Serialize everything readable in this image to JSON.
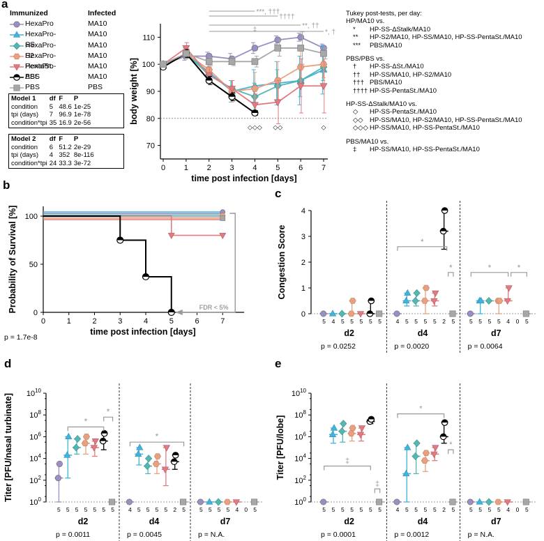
{
  "panels": {
    "a": "a",
    "b": "b",
    "c": "c",
    "d": "d",
    "e": "e"
  },
  "legend": {
    "header_group": "Immunized",
    "header_infect": "Infected",
    "entries": [
      {
        "name": "HexaPro",
        "infect": "MA10",
        "color": "#9b8ec4",
        "marker": "circle"
      },
      {
        "name": "HexaPro-SS",
        "infect": "MA10",
        "color": "#3fb4dc",
        "marker": "triangle-up"
      },
      {
        "name": "HexaPro-S2",
        "infect": "MA10",
        "color": "#54b7b3",
        "marker": "diamond"
      },
      {
        "name": "HexaPro-PentaSt.",
        "infect": "MA10",
        "color": "#e8a07f",
        "marker": "hexagon"
      },
      {
        "name": "HexaPro-ΔSt.",
        "infect": "MA10",
        "color": "#df7b82",
        "marker": "triangle-down"
      },
      {
        "name": "PBS",
        "infect": "MA10",
        "color": "#000000",
        "marker": "half-circle"
      },
      {
        "name": "PBS",
        "infect": "PBS",
        "color": "#a7a7a7",
        "marker": "square"
      }
    ]
  },
  "models": [
    {
      "title": "Model 1",
      "cols": [
        "df",
        "F",
        "P"
      ],
      "rows": [
        [
          "condition",
          "5",
          "48.6",
          "1e-25"
        ],
        [
          "tpi (days)",
          "7",
          "96.9",
          "1e-78"
        ],
        [
          "condition*tpi",
          "35",
          "16.9",
          "2e-56"
        ]
      ]
    },
    {
      "title": "Model 2",
      "cols": [
        "df",
        "F",
        "P"
      ],
      "rows": [
        [
          "condition",
          "6",
          "51.2",
          "2e-29"
        ],
        [
          "tpi (days)",
          "4",
          "352",
          "8e-116"
        ],
        [
          "condition*tpi",
          "24",
          "33.3",
          "3e-72"
        ]
      ]
    }
  ],
  "tukey": {
    "title": "Tukey post-tests, per day:",
    "groups": [
      {
        "head": "HP/MA10 vs.",
        "rows": [
          [
            "*",
            "HP-SS-ΔStalk/MA10"
          ],
          [
            "**",
            "HP-S2/MA10, HP-SS/MA10, HP-SS-PentaSt./MA10"
          ],
          [
            "***",
            "PBS/MA10"
          ]
        ]
      },
      {
        "head": "PBS/PBS vs.",
        "rows": [
          [
            "†",
            "HP-SS-ΔSt./MA10"
          ],
          [
            "††",
            "HP-SS/MA10, HP-S2/MA10"
          ],
          [
            "†††",
            "PBS/MA10"
          ],
          [
            "††††",
            "HP-SS-PentaSt./MA10"
          ]
        ]
      },
      {
        "head": "HP-SS-ΔStalk/MA10 vs.",
        "rows": [
          [
            "◇",
            "HP-SS-PentaSt./MA10"
          ],
          [
            "◇◇",
            "HP-SS/MA10, HP-S2/MA10, HP-SS-PentaSt./MA10"
          ],
          [
            "◇◇◇",
            "HP-SS/MA10, HP-SS-PentaSt./MA10"
          ]
        ]
      },
      {
        "head": "PBS/MA10 vs.",
        "rows": [
          [
            "‡",
            "HP-SS/MA10, HP-SS-PentaSt./MA10"
          ]
        ]
      }
    ]
  },
  "chart_data": [
    {
      "panel": "a",
      "type": "line",
      "xlabel": "time post infection [days]",
      "ylabel": "body weight [%]",
      "x": [
        0,
        1,
        2,
        3,
        4,
        5,
        6,
        7
      ],
      "ylim": [
        65,
        115
      ],
      "yticks": [
        70,
        80,
        90,
        100,
        110
      ],
      "reference_line": 80,
      "series": [
        {
          "name": "HexaPro",
          "values": [
            100,
            103,
            103,
            102,
            106,
            109,
            110,
            106
          ],
          "err": [
            0.5,
            1.5,
            1.5,
            2,
            2,
            1.5,
            1.5,
            1.5
          ]
        },
        {
          "name": "HexaPro-SS",
          "values": [
            100,
            104,
            97,
            90,
            92,
            93,
            94,
            98
          ],
          "err": [
            0.5,
            2,
            3,
            4,
            6,
            8,
            9,
            9
          ]
        },
        {
          "name": "HexaPro-S2",
          "values": [
            100,
            104,
            96,
            91,
            88,
            92,
            94,
            99
          ],
          "err": [
            0.5,
            2,
            3,
            3,
            5,
            6,
            6,
            5
          ]
        },
        {
          "name": "HexaPro-PentaSt.",
          "values": [
            100,
            104,
            98,
            90,
            91,
            94,
            99,
            100
          ],
          "err": [
            0.5,
            2,
            3,
            4,
            6,
            7,
            6,
            5
          ]
        },
        {
          "name": "HexaPro-ΔSt.",
          "values": [
            100,
            106,
            96,
            91,
            85,
            86,
            92,
            92
          ],
          "err": [
            0.5,
            2,
            3,
            3,
            4,
            8,
            10,
            10
          ]
        },
        {
          "name": "PBS/MA10",
          "values": [
            99,
            104,
            94,
            88,
            82,
            null,
            null,
            null
          ],
          "err": [
            0.5,
            1.5,
            1.5,
            1.5,
            0.8,
            0,
            0,
            0
          ]
        },
        {
          "name": "PBS/PBS",
          "values": [
            100,
            104,
            101,
            101,
            101,
            106,
            106,
            104
          ],
          "err": [
            0.5,
            1,
            1.5,
            1.5,
            2,
            3,
            6,
            2
          ]
        }
      ],
      "annotations": [
        {
          "text": "***, †††",
          "day_from": 2,
          "day_to": 4
        },
        {
          "text": "††††",
          "day_from": 2,
          "day_to": 5
        },
        {
          "text": "**, ††",
          "day_from": 2,
          "day_to": 6
        },
        {
          "text": "*, †",
          "day_from": 2,
          "day_to": 7
        },
        {
          "text": "‡",
          "day": 4
        },
        {
          "text": "◇◇◇",
          "day": 4
        },
        {
          "text": "◇◇",
          "day": 5
        },
        {
          "text": "◇",
          "day": 7
        }
      ]
    },
    {
      "panel": "b",
      "type": "line",
      "xlabel": "time post infection [days]",
      "ylabel": "Probability of Survival [%]",
      "x": [
        0,
        1,
        2,
        3,
        4,
        5,
        6,
        7
      ],
      "xticks": [
        0,
        1,
        2,
        3,
        4,
        5,
        6,
        7
      ],
      "ylim": [
        0,
        100
      ],
      "yticks": [
        0,
        50,
        100
      ],
      "series": [
        {
          "name": "PBS/MA10",
          "steps": [
            [
              0,
              100
            ],
            [
              3,
              100
            ],
            [
              3,
              75
            ],
            [
              4,
              75
            ],
            [
              4,
              37
            ],
            [
              5,
              37
            ],
            [
              5,
              0
            ]
          ]
        },
        {
          "name": "HexaPro-ΔSt.",
          "steps": [
            [
              0,
              100
            ],
            [
              5,
              100
            ],
            [
              5,
              80
            ],
            [
              7,
              80
            ]
          ]
        },
        {
          "name": "other groups",
          "steps": [
            [
              0,
              100
            ],
            [
              7,
              100
            ]
          ]
        }
      ],
      "annotation": "FDR < 5%",
      "p_value": "p = 1.7e-8"
    },
    {
      "panel": "c",
      "type": "scatter",
      "ylabel": "Congestion Score",
      "ylim": [
        0,
        4
      ],
      "yticks": [
        0,
        1,
        2,
        3,
        4
      ],
      "days": [
        {
          "label": "d2",
          "p": "p = 0.0252",
          "n": [
            "5",
            "4",
            "5",
            "5",
            "5",
            "5",
            "5"
          ],
          "groups": [
            [
              0,
              0,
              0
            ],
            [
              0,
              0,
              0
            ],
            [
              0,
              0,
              0
            ],
            [
              0,
              0.5,
              0
            ],
            [
              0,
              0,
              0
            ],
            [
              0,
              0.5,
              0
            ],
            [
              0,
              0,
              0
            ]
          ]
        },
        {
          "label": "d4",
          "p": "p = 0.0020",
          "n": [
            "4",
            "5",
            "5",
            "5",
            "5",
            "2",
            "5"
          ],
          "groups": [
            [
              0,
              0,
              0
            ],
            [
              0.5,
              0.8,
              0.3
            ],
            [
              0.5,
              0.8,
              0.3
            ],
            [
              0.5,
              1,
              0
            ],
            [
              0.5,
              0.8,
              0.3
            ],
            [
              3.2,
              4,
              2.5
            ],
            [
              0,
              0,
              0
            ]
          ]
        },
        {
          "label": "d7",
          "p": "p = 0.0064",
          "n": [
            "5",
            "5",
            "5",
            "5",
            "4",
            "0",
            "5"
          ],
          "groups": [
            [
              0,
              0,
              0
            ],
            [
              0.5,
              0.5,
              0
            ],
            [
              0.5,
              0.5,
              0.5
            ],
            [
              0.5,
              0.5,
              0
            ],
            [
              0.5,
              1,
              0.5
            ],
            null,
            [
              0,
              0,
              0
            ]
          ]
        }
      ],
      "significance": "*"
    },
    {
      "panel": "d",
      "type": "scatter",
      "ylabel": "Titer [PFU/nasal turbinate]",
      "ylog": [
        0,
        10
      ],
      "yticks": [
        "10^0",
        "10^2",
        "10^4",
        "10^6",
        "10^8",
        "10^10"
      ],
      "days": [
        {
          "label": "d2",
          "p": "p = 0.0011",
          "n": [
            "5",
            "5",
            "5",
            "5",
            "5",
            "5",
            "5"
          ],
          "groups": [
            [
              2.2,
              3.5,
              0
            ],
            [
              4.3,
              6,
              2.2
            ],
            [
              5,
              5.8,
              4.4
            ],
            [
              5.4,
              6,
              4.4
            ],
            [
              5,
              5.6,
              4.2
            ],
            [
              5.6,
              6.3,
              4.8
            ],
            [
              0,
              0,
              0
            ]
          ]
        },
        {
          "label": "d4",
          "p": "p = 0.0045",
          "n": [
            "4",
            "5",
            "5",
            "5",
            "5",
            "2",
            "5"
          ],
          "groups": [
            [
              0,
              0,
              0
            ],
            [
              4.4,
              5,
              3.4
            ],
            [
              3.3,
              4,
              2.6
            ],
            [
              3.5,
              4.2,
              2.6
            ],
            [
              3,
              5,
              1.5
            ],
            [
              3.7,
              4.3,
              3
            ],
            [
              0,
              0,
              0
            ]
          ]
        },
        {
          "label": "d7",
          "p": "p = N.A.",
          "n": [
            "5",
            "5",
            "5",
            "5",
            "4",
            "0",
            "5"
          ],
          "groups": [
            [
              0,
              0,
              0
            ],
            [
              0,
              0,
              0
            ],
            [
              0,
              0,
              0
            ],
            [
              0,
              0,
              0
            ],
            [
              0,
              0,
              0
            ],
            null,
            [
              0,
              0,
              0
            ]
          ]
        }
      ],
      "significance": "*"
    },
    {
      "panel": "e",
      "type": "scatter",
      "ylabel": "Titer [PFU/lobe]",
      "ylog": [
        0,
        10
      ],
      "yticks": [
        "10^0",
        "10^2",
        "10^4",
        "10^6",
        "10^8",
        "10^10"
      ],
      "days": [
        {
          "label": "d2",
          "p": "p = 0.0001",
          "n": [
            "5",
            "5",
            "5",
            "5",
            "5",
            "5",
            "5"
          ],
          "groups": [
            [
              0,
              0,
              0
            ],
            [
              6.2,
              6.8,
              5.4
            ],
            [
              6.5,
              7.2,
              5.5
            ],
            [
              6.3,
              6.8,
              5.6
            ],
            [
              6.2,
              6.8,
              5.6
            ],
            [
              7.4,
              7.6,
              7.2
            ],
            [
              0,
              0,
              0
            ]
          ]
        },
        {
          "label": "d4",
          "p": "p = 0.0012",
          "n": [
            "4",
            "5",
            "5",
            "5",
            "5",
            "2",
            "5"
          ],
          "groups": [
            [
              0,
              0,
              0
            ],
            [
              2.6,
              5,
              0
            ],
            [
              4.2,
              5.4,
              2.6
            ],
            [
              3.8,
              4.5,
              2.8
            ],
            [
              4.4,
              5,
              3.8
            ],
            [
              6,
              7.3,
              5.4
            ],
            [
              0,
              0,
              0
            ]
          ]
        },
        {
          "label": "d7",
          "p": "p = N.A.",
          "n": [
            "5",
            "5",
            "5",
            "5",
            "4",
            "0",
            "5"
          ],
          "groups": [
            [
              0,
              0,
              0
            ],
            [
              0,
              0,
              0
            ],
            [
              0,
              0,
              0
            ],
            [
              0,
              0,
              0
            ],
            [
              0,
              0,
              0
            ],
            null,
            [
              0,
              0,
              0
            ]
          ]
        }
      ],
      "significance": [
        "*",
        "‡"
      ]
    }
  ]
}
